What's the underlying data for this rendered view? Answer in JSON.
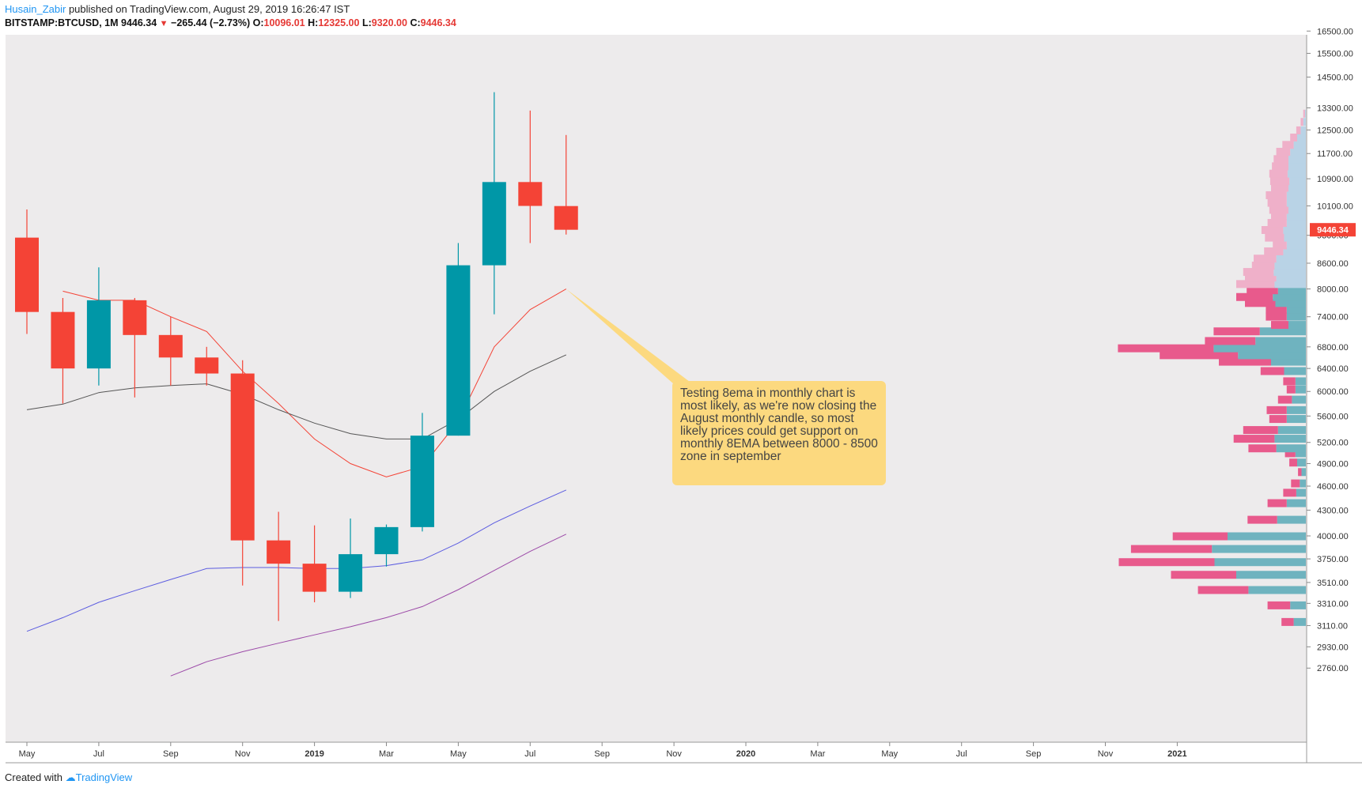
{
  "header": {
    "user": "Husain_Zabir",
    "published": "published on TradingView.com, August 29, 2019 16:26:47 IST",
    "symbol": "BITSTAMP:BTCUSD, 1M",
    "last": "9446.34",
    "change_arrow": "▼",
    "change": "−265.44 (−2.73%)",
    "o_label": "O:",
    "o": "10096.01",
    "h_label": "H:",
    "h": "12325.00",
    "l_label": "L:",
    "l": "9320.00",
    "c_label": "C:",
    "c": "9446.34"
  },
  "footer": {
    "created_with": "Created with",
    "brand": "TradingView"
  },
  "annotation": {
    "text": "Testing 8ema in monthly chart is most likely, as we're now closing the August monthly candle, so most likely prices could get support on monthly 8EMA between 8000 - 8500 zone in september"
  },
  "price_tag": "9446.34",
  "colors": {
    "background": "#edebec",
    "up": "#0097a7",
    "down": "#f44336",
    "ema8": "#f44336",
    "ema_gray": "#555555",
    "ema_blue": "#5c5ce0",
    "ema_purple": "#9c4aa8",
    "vp_up": "#6fb3bf",
    "vp_down": "#e85a8c",
    "vp_up_light": "#b9d3e6",
    "vp_down_light": "#efb0c9",
    "callout": "#fcd97f"
  },
  "chart_data": {
    "type": "candlestick",
    "symbol": "BITSTAMP:BTCUSD",
    "interval": "1M",
    "y_scale": "log",
    "ylim": [
      2700,
      17000
    ],
    "y_ticks": [
      "16500.00",
      "15500.00",
      "14500.00",
      "13300.00",
      "12500.00",
      "11700.00",
      "10900.00",
      "10100.00",
      "9300.00",
      "8600.00",
      "8000.00",
      "7400.00",
      "6800.00",
      "6400.00",
      "6000.00",
      "5600.00",
      "5200.00",
      "4900.00",
      "4600.00",
      "4300.00",
      "4000.00",
      "3750.00",
      "3510.00",
      "3310.00",
      "3110.00",
      "2930.00",
      "2760.00"
    ],
    "x_ticks": [
      {
        "label": "May",
        "bold": false
      },
      {
        "label": "Jul",
        "bold": false
      },
      {
        "label": "Sep",
        "bold": false
      },
      {
        "label": "Nov",
        "bold": false
      },
      {
        "label": "2019",
        "bold": true
      },
      {
        "label": "Mar",
        "bold": false
      },
      {
        "label": "May",
        "bold": false
      },
      {
        "label": "Jul",
        "bold": false
      },
      {
        "label": "Sep",
        "bold": false
      },
      {
        "label": "Nov",
        "bold": false
      },
      {
        "label": "2020",
        "bold": true
      },
      {
        "label": "Mar",
        "bold": false
      },
      {
        "label": "May",
        "bold": false
      },
      {
        "label": "Jul",
        "bold": false
      },
      {
        "label": "Sep",
        "bold": false
      },
      {
        "label": "Nov",
        "bold": false
      },
      {
        "label": "2021",
        "bold": true
      }
    ],
    "candles": [
      {
        "date": "2018-05",
        "open": 9240,
        "high": 10000,
        "low": 7050,
        "close": 7500
      },
      {
        "date": "2018-06",
        "open": 7500,
        "high": 7800,
        "low": 5800,
        "close": 6400
      },
      {
        "date": "2018-07",
        "open": 6400,
        "high": 8500,
        "low": 6100,
        "close": 7750
      },
      {
        "date": "2018-08",
        "open": 7750,
        "high": 7800,
        "low": 5900,
        "close": 7030
      },
      {
        "date": "2018-09",
        "open": 7030,
        "high": 7400,
        "low": 6100,
        "close": 6600
      },
      {
        "date": "2018-10",
        "open": 6600,
        "high": 6800,
        "low": 6100,
        "close": 6310
      },
      {
        "date": "2018-11",
        "open": 6310,
        "high": 6550,
        "low": 3480,
        "close": 3950
      },
      {
        "date": "2018-12",
        "open": 3950,
        "high": 4280,
        "low": 3150,
        "close": 3700
      },
      {
        "date": "2019-01",
        "open": 3700,
        "high": 4120,
        "low": 3320,
        "close": 3420
      },
      {
        "date": "2019-02",
        "open": 3420,
        "high": 4200,
        "low": 3360,
        "close": 3800
      },
      {
        "date": "2019-03",
        "open": 3800,
        "high": 4130,
        "low": 3670,
        "close": 4100
      },
      {
        "date": "2019-04",
        "open": 4100,
        "high": 5650,
        "low": 4050,
        "close": 5300
      },
      {
        "date": "2019-05",
        "open": 5300,
        "high": 9100,
        "low": 5300,
        "close": 8550
      },
      {
        "date": "2019-06",
        "open": 8550,
        "high": 13900,
        "low": 7450,
        "close": 10800
      },
      {
        "date": "2019-07",
        "open": 10800,
        "high": 13200,
        "low": 9100,
        "close": 10100
      },
      {
        "date": "2019-08",
        "open": 10096.01,
        "high": 12325,
        "low": 9320,
        "close": 9446.34
      }
    ],
    "series": [
      {
        "type": "line",
        "color": "#f44336",
        "x": [
          "2018-06",
          "2018-07",
          "2018-08",
          "2018-09",
          "2018-10",
          "2018-11",
          "2018-12",
          "2019-01",
          "2019-02",
          "2019-03",
          "2019-04",
          "2019-05",
          "2019-06",
          "2019-07",
          "2019-08"
        ],
        "values": [
          7950,
          7750,
          7750,
          7400,
          7100,
          6350,
          5800,
          5250,
          4900,
          4720,
          4860,
          5520,
          6800,
          7550,
          8000
        ]
      },
      {
        "type": "line",
        "color": "#555555",
        "x": [
          "2018-05",
          "2018-06",
          "2018-07",
          "2018-08",
          "2018-09",
          "2018-10",
          "2018-11",
          "2018-12",
          "2019-01",
          "2019-02",
          "2019-03",
          "2019-04",
          "2019-05",
          "2019-06",
          "2019-07",
          "2019-08"
        ],
        "values": [
          5700,
          5790,
          5980,
          6060,
          6100,
          6130,
          5950,
          5700,
          5490,
          5330,
          5250,
          5250,
          5550,
          6000,
          6350,
          6650
        ]
      },
      {
        "type": "line",
        "color": "#5c5ce0",
        "x": [
          "2018-05",
          "2018-06",
          "2018-07",
          "2018-08",
          "2018-09",
          "2018-10",
          "2018-11",
          "2018-12",
          "2019-01",
          "2019-02",
          "2019-03",
          "2019-04",
          "2019-05",
          "2019-06",
          "2019-07",
          "2019-08"
        ],
        "values": [
          3060,
          3180,
          3320,
          3430,
          3540,
          3650,
          3660,
          3660,
          3650,
          3650,
          3680,
          3740,
          3920,
          4150,
          4350,
          4550
        ]
      },
      {
        "type": "line",
        "color": "#9c4aa8",
        "x": [
          "2018-09",
          "2018-10",
          "2018-11",
          "2018-12",
          "2019-01",
          "2019-02",
          "2019-03",
          "2019-04",
          "2019-05",
          "2019-06",
          "2019-07",
          "2019-08"
        ],
        "values": [
          2700,
          2810,
          2890,
          2960,
          3030,
          3100,
          3180,
          3280,
          3440,
          3630,
          3830,
          4020
        ]
      }
    ],
    "volume_profile": [
      {
        "price": 3145,
        "up": 14,
        "down": 14
      },
      {
        "price": 3295,
        "up": 18,
        "down": 26
      },
      {
        "price": 3440,
        "up": 66,
        "down": 58
      },
      {
        "price": 3590,
        "up": 80,
        "down": 75
      },
      {
        "price": 3720,
        "up": 105,
        "down": 110
      },
      {
        "price": 3860,
        "up": 108,
        "down": 93
      },
      {
        "price": 4000,
        "up": 90,
        "down": 63
      },
      {
        "price": 4190,
        "up": 33,
        "down": 34
      },
      {
        "price": 4390,
        "up": 22,
        "down": 22
      },
      {
        "price": 4520,
        "up": 11,
        "down": 15
      },
      {
        "price": 4640,
        "up": 7,
        "down": 10
      },
      {
        "price": 4790,
        "up": 5,
        "down": 4
      },
      {
        "price": 4920,
        "up": 10,
        "down": 9
      },
      {
        "price": 5050,
        "up": 12,
        "down": 12
      },
      {
        "price": 5120,
        "up": 34,
        "down": 32
      },
      {
        "price": 5260,
        "up": 36,
        "down": 47
      },
      {
        "price": 5390,
        "up": 32,
        "down": 40
      },
      {
        "price": 5560,
        "up": 22,
        "down": 20
      },
      {
        "price": 5700,
        "up": 22,
        "down": 23
      },
      {
        "price": 5870,
        "up": 16,
        "down": 16
      },
      {
        "price": 6040,
        "up": 12,
        "down": 10
      },
      {
        "price": 6180,
        "up": 12,
        "down": 14
      },
      {
        "price": 6360,
        "up": 25,
        "down": 27
      },
      {
        "price": 6530,
        "up": 40,
        "down": 60
      },
      {
        "price": 6650,
        "up": 78,
        "down": 90
      },
      {
        "price": 6780,
        "up": 106,
        "down": 110
      },
      {
        "price": 6920,
        "up": 58,
        "down": 58
      },
      {
        "price": 7110,
        "up": 53,
        "down": 53
      },
      {
        "price": 7240,
        "up": 20,
        "down": 20
      },
      {
        "price": 7410,
        "up": 22,
        "down": 24
      },
      {
        "price": 7560,
        "up": 22,
        "down": 24
      },
      {
        "price": 7700,
        "up": 35,
        "down": 35
      },
      {
        "price": 7830,
        "up": 38,
        "down": 42
      },
      {
        "price": 7980,
        "up": 32,
        "down": 36
      },
      {
        "price": 8120,
        "up": 36,
        "down": 44
      },
      {
        "price": 8270,
        "up": 34,
        "down": 36
      },
      {
        "price": 8400,
        "up": 37,
        "down": 35
      },
      {
        "price": 8550,
        "up": 36,
        "down": 26
      },
      {
        "price": 8720,
        "up": 34,
        "down": 26
      },
      {
        "price": 8900,
        "up": 26,
        "down": 22
      },
      {
        "price": 9050,
        "up": 22,
        "down": 16
      },
      {
        "price": 9250,
        "up": 25,
        "down": 22
      },
      {
        "price": 9450,
        "up": 26,
        "down": 25
      },
      {
        "price": 9640,
        "up": 22,
        "down": 22
      },
      {
        "price": 9820,
        "up": 22,
        "down": 18
      },
      {
        "price": 10000,
        "up": 20,
        "down": 22
      },
      {
        "price": 10200,
        "up": 22,
        "down": 22
      },
      {
        "price": 10420,
        "up": 22,
        "down": 24
      },
      {
        "price": 10640,
        "up": 20,
        "down": 20
      },
      {
        "price": 10840,
        "up": 19,
        "down": 22
      },
      {
        "price": 11070,
        "up": 21,
        "down": 21
      },
      {
        "price": 11300,
        "up": 20,
        "down": 19
      },
      {
        "price": 11530,
        "up": 20,
        "down": 17
      },
      {
        "price": 11770,
        "up": 18,
        "down": 16
      },
      {
        "price": 12000,
        "up": 14,
        "down": 13
      },
      {
        "price": 12250,
        "up": 10,
        "down": 8
      },
      {
        "price": 12500,
        "up": 6,
        "down": 5
      },
      {
        "price": 12800,
        "up": 3,
        "down": 3
      },
      {
        "price": 13100,
        "up": 1,
        "down": 2
      }
    ],
    "annotation_point": {
      "date": "2019-08",
      "price": 8000
    }
  }
}
